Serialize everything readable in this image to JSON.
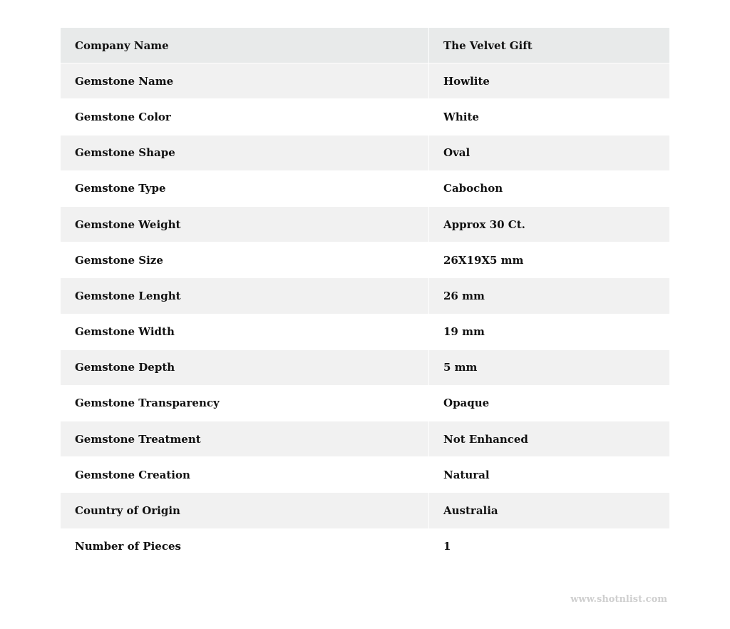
{
  "rows": [
    {
      "label": "Company Name",
      "value": "The Velvet Gift"
    },
    {
      "label": "Gemstone Name",
      "value": "Howlite"
    },
    {
      "label": "Gemstone Color",
      "value": "White"
    },
    {
      "label": "Gemstone Shape",
      "value": "Oval"
    },
    {
      "label": "Gemstone Type",
      "value": "Cabochon"
    },
    {
      "label": "Gemstone Weight",
      "value": "Approx 30 Ct."
    },
    {
      "label": "Gemstone Size",
      "value": "26X19X5 mm"
    },
    {
      "label": "Gemstone Lenght",
      "value": "26 mm"
    },
    {
      "label": "Gemstone Width",
      "value": "19 mm"
    },
    {
      "label": "Gemstone Depth",
      "value": "5 mm"
    },
    {
      "label": "Gemstone Transparency",
      "value": "Opaque"
    },
    {
      "label": "Gemstone Treatment",
      "value": "Not Enhanced"
    },
    {
      "label": "Gemstone Creation",
      "value": "Natural"
    },
    {
      "label": "Country of Origin",
      "value": "Australia"
    },
    {
      "label": "Number of Pieces",
      "value": "1"
    }
  ],
  "watermark": "www.shotnlist.com"
}
